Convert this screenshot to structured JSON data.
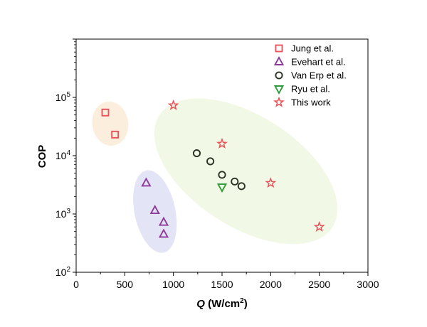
{
  "chart_data": {
    "type": "scatter",
    "title": "",
    "xlabel": {
      "symbol": "Q",
      "unit_pre": " (W/cm",
      "unit_sup": "2",
      "unit_post": ")"
    },
    "ylabel": "COP",
    "xlim": [
      0,
      3000
    ],
    "ylim": [
      100,
      1000000
    ],
    "yscale": "log",
    "x_ticks": [
      0,
      500,
      1000,
      1500,
      2000,
      2500,
      3000
    ],
    "x_tick_labels": [
      "0",
      "500",
      "1000",
      "1500",
      "2000",
      "2500",
      "3000"
    ],
    "y_ticks": [
      {
        "value": 100,
        "base": "10",
        "exp": "2"
      },
      {
        "value": 1000,
        "base": "10",
        "exp": "3"
      },
      {
        "value": 10000,
        "base": "10",
        "exp": "4"
      },
      {
        "value": 100000,
        "base": "10",
        "exp": "5"
      }
    ],
    "legend_position": "top-right",
    "series": [
      {
        "name": "Jung et al.",
        "marker": "square",
        "color": "#e8545c",
        "points": [
          {
            "x": 300,
            "y": 55000
          },
          {
            "x": 400,
            "y": 23000
          }
        ]
      },
      {
        "name": "Evehart et al.",
        "marker": "triangle-up",
        "color": "#8e3a9a",
        "points": [
          {
            "x": 720,
            "y": 3400
          },
          {
            "x": 810,
            "y": 1150
          },
          {
            "x": 900,
            "y": 720
          },
          {
            "x": 900,
            "y": 450
          }
        ]
      },
      {
        "name": "Van Erp et al.",
        "marker": "circle",
        "color": "#2a3325",
        "points": [
          {
            "x": 1240,
            "y": 11000
          },
          {
            "x": 1380,
            "y": 8000
          },
          {
            "x": 1500,
            "y": 4700
          },
          {
            "x": 1630,
            "y": 3600
          },
          {
            "x": 1700,
            "y": 3000
          }
        ]
      },
      {
        "name": "Ryu et al.",
        "marker": "triangle-down",
        "color": "#2e9a38",
        "points": [
          {
            "x": 1500,
            "y": 2900
          }
        ]
      },
      {
        "name": "This work",
        "marker": "star",
        "color": "#e8545c",
        "points": [
          {
            "x": 1000,
            "y": 73000
          },
          {
            "x": 1500,
            "y": 16000
          },
          {
            "x": 2000,
            "y": 3400
          },
          {
            "x": 2500,
            "y": 600
          }
        ]
      }
    ],
    "regions": [
      {
        "name": "jung-region",
        "color": "#fbeedd",
        "center": {
          "x": 350,
          "y": 35500
        },
        "rx_data": 185,
        "ry_decades": 0.38,
        "angle": -8
      },
      {
        "name": "evehart-region",
        "color": "#e3e5f7",
        "center": {
          "x": 810,
          "y": 1100
        },
        "rx_data": 210,
        "ry_decades": 0.72,
        "angle": -12
      },
      {
        "name": "this-work-region",
        "color": "#f2f8e6",
        "center": {
          "x": 1745,
          "y": 5400
        },
        "rx_data": 1060,
        "ry_decades": 0.95,
        "angle": 33
      }
    ]
  }
}
